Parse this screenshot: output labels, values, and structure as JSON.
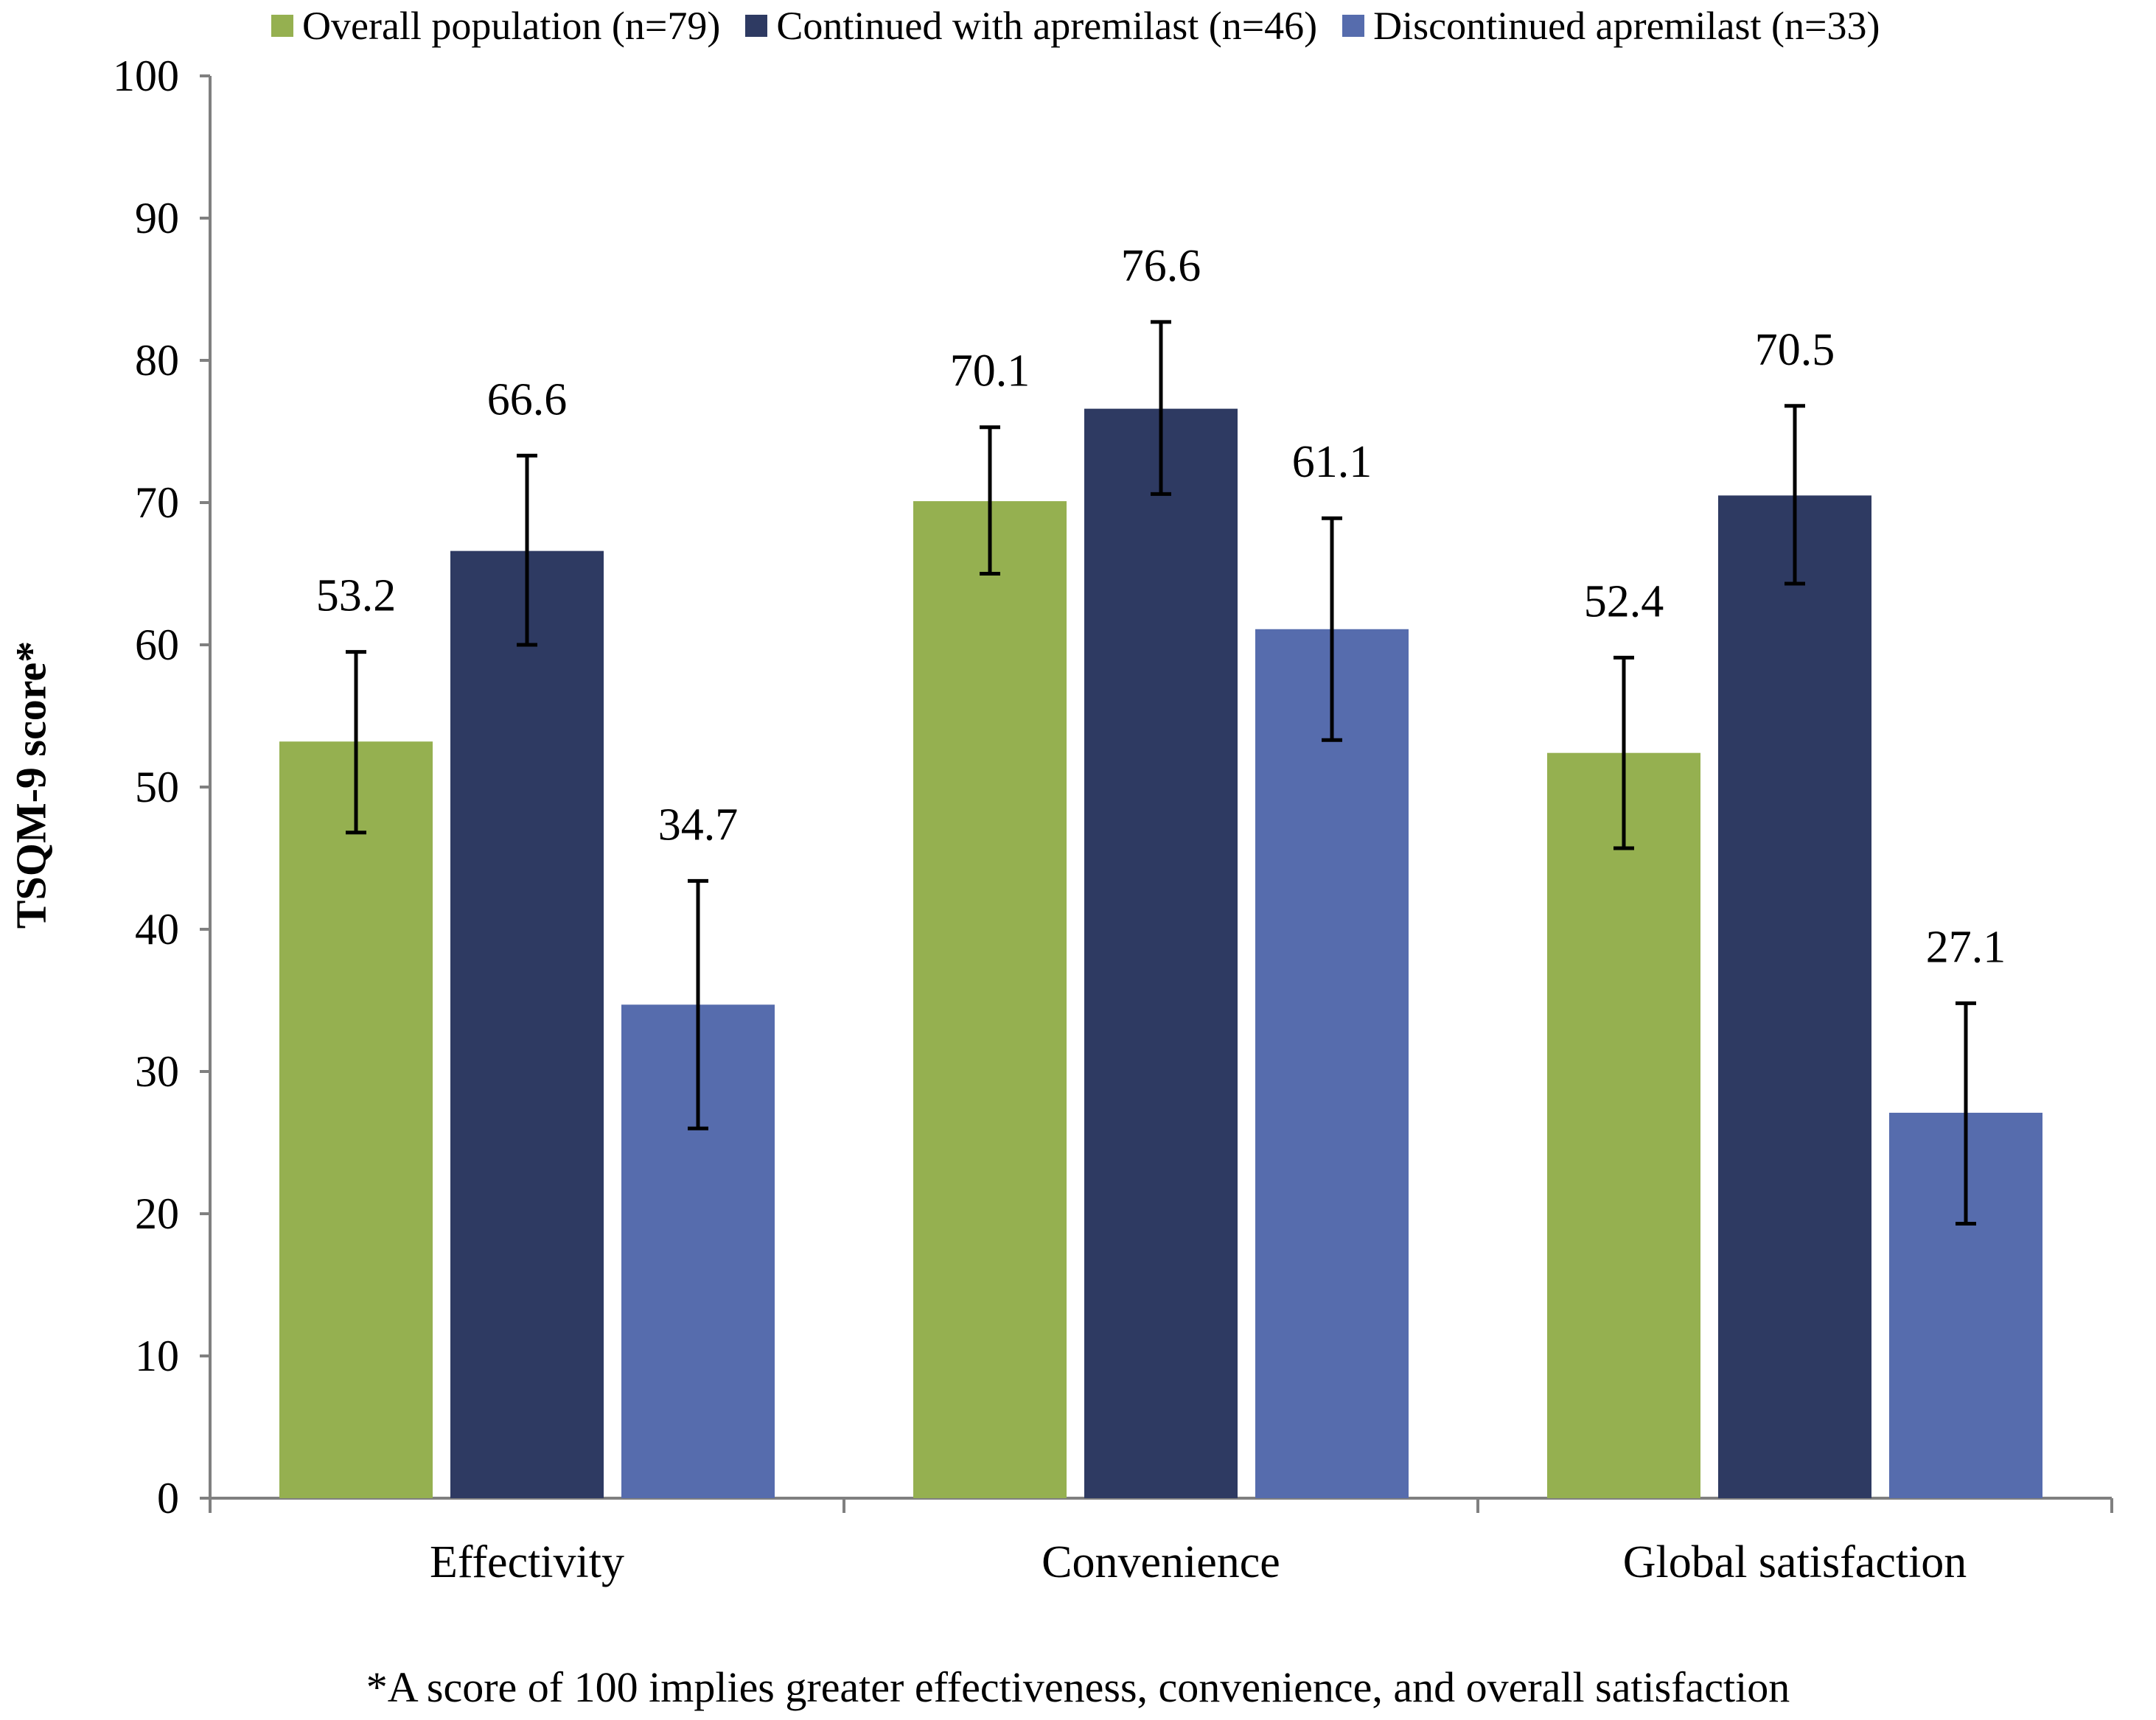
{
  "chart_data": {
    "type": "bar",
    "ylabel": "TSQM-9 score*",
    "xlabel": "",
    "ylim": [
      0,
      100
    ],
    "yticks": [
      "0",
      "10",
      "20",
      "30",
      "40",
      "50",
      "60",
      "70",
      "80",
      "90",
      "100"
    ],
    "categories": [
      "Effectivity",
      "Convenience",
      "Global satisfaction"
    ],
    "series": [
      {
        "name": "Overall population (n=79)",
        "color": "#95b050",
        "values": [
          53.2,
          70.1,
          52.4
        ],
        "labels": [
          "53.2",
          "70.1",
          "52.4"
        ],
        "error_low": [
          46.8,
          65.0,
          45.7
        ],
        "error_high": [
          59.5,
          75.3,
          59.1
        ]
      },
      {
        "name": "Continued with apremilast (n=46)",
        "color": "#2e3a62",
        "values": [
          66.6,
          76.6,
          70.5
        ],
        "labels": [
          "66.6",
          "76.6",
          "70.5"
        ],
        "error_low": [
          60.0,
          70.6,
          64.3
        ],
        "error_high": [
          73.3,
          82.7,
          76.8
        ]
      },
      {
        "name": "Discontinued apremilast (n=33)",
        "color": "#566cad",
        "values": [
          34.7,
          61.1,
          27.1
        ],
        "labels": [
          "34.7",
          "61.1",
          "27.1"
        ],
        "error_low": [
          26.0,
          53.3,
          19.3
        ],
        "error_high": [
          43.4,
          68.9,
          34.8
        ]
      }
    ],
    "legend_position": "top",
    "grid": false,
    "footnote": "*A score of 100 implies greater effectiveness, convenience, and overall satisfaction"
  }
}
